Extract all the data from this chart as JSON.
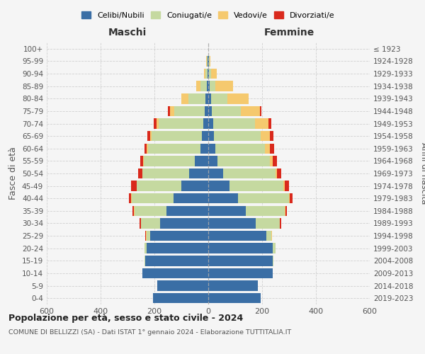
{
  "age_groups": [
    "0-4",
    "5-9",
    "10-14",
    "15-19",
    "20-24",
    "25-29",
    "30-34",
    "35-39",
    "40-44",
    "45-49",
    "50-54",
    "55-59",
    "60-64",
    "65-69",
    "70-74",
    "75-79",
    "80-84",
    "85-89",
    "90-94",
    "95-99",
    "100+"
  ],
  "birth_years": [
    "2019-2023",
    "2014-2018",
    "2009-2013",
    "2004-2008",
    "1999-2003",
    "1994-1998",
    "1989-1993",
    "1984-1988",
    "1979-1983",
    "1974-1978",
    "1969-1973",
    "1964-1968",
    "1959-1963",
    "1954-1958",
    "1949-1953",
    "1944-1948",
    "1939-1943",
    "1934-1938",
    "1929-1933",
    "1924-1928",
    "≤ 1923"
  ],
  "males": {
    "celibi": [
      205,
      190,
      245,
      235,
      230,
      215,
      180,
      155,
      130,
      100,
      70,
      50,
      30,
      25,
      18,
      12,
      10,
      5,
      3,
      2,
      0
    ],
    "coniugati": [
      0,
      0,
      0,
      3,
      8,
      15,
      70,
      120,
      155,
      165,
      175,
      190,
      195,
      185,
      165,
      115,
      65,
      25,
      8,
      3,
      0
    ],
    "vedovi": [
      0,
      0,
      0,
      0,
      0,
      1,
      1,
      1,
      1,
      1,
      1,
      2,
      3,
      5,
      10,
      15,
      25,
      15,
      5,
      2,
      0
    ],
    "divorziati": [
      0,
      0,
      0,
      0,
      0,
      2,
      3,
      5,
      8,
      20,
      15,
      10,
      10,
      12,
      10,
      8,
      0,
      0,
      0,
      0,
      0
    ]
  },
  "females": {
    "nubili": [
      195,
      185,
      240,
      240,
      240,
      215,
      175,
      140,
      110,
      80,
      55,
      35,
      25,
      20,
      18,
      12,
      10,
      5,
      3,
      2,
      0
    ],
    "coniugate": [
      0,
      0,
      0,
      3,
      10,
      20,
      90,
      145,
      190,
      200,
      195,
      195,
      185,
      175,
      155,
      110,
      60,
      22,
      8,
      2,
      0
    ],
    "vedove": [
      0,
      0,
      0,
      0,
      0,
      1,
      1,
      2,
      2,
      3,
      5,
      10,
      20,
      35,
      50,
      70,
      80,
      65,
      20,
      5,
      0
    ],
    "divorziate": [
      0,
      0,
      0,
      0,
      0,
      2,
      5,
      5,
      12,
      18,
      15,
      15,
      15,
      12,
      10,
      5,
      0,
      0,
      0,
      0,
      0
    ]
  },
  "colors": {
    "celibi": "#3a6ea5",
    "coniugati": "#c5d9a0",
    "vedovi": "#f5c96e",
    "divorziati": "#d9291c"
  },
  "xlim": 600,
  "title": "Popolazione per età, sesso e stato civile - 2024",
  "subtitle": "COMUNE DI BELLIZZI (SA) - Dati ISTAT 1° gennaio 2024 - Elaborazione TUTTITALIA.IT",
  "ylabel_left": "Fasce di età",
  "ylabel_right": "Anni di nascita",
  "xlabel_maschi": "Maschi",
  "xlabel_femmine": "Femmine",
  "bg_color": "#f5f5f5",
  "grid_color": "#cccccc"
}
